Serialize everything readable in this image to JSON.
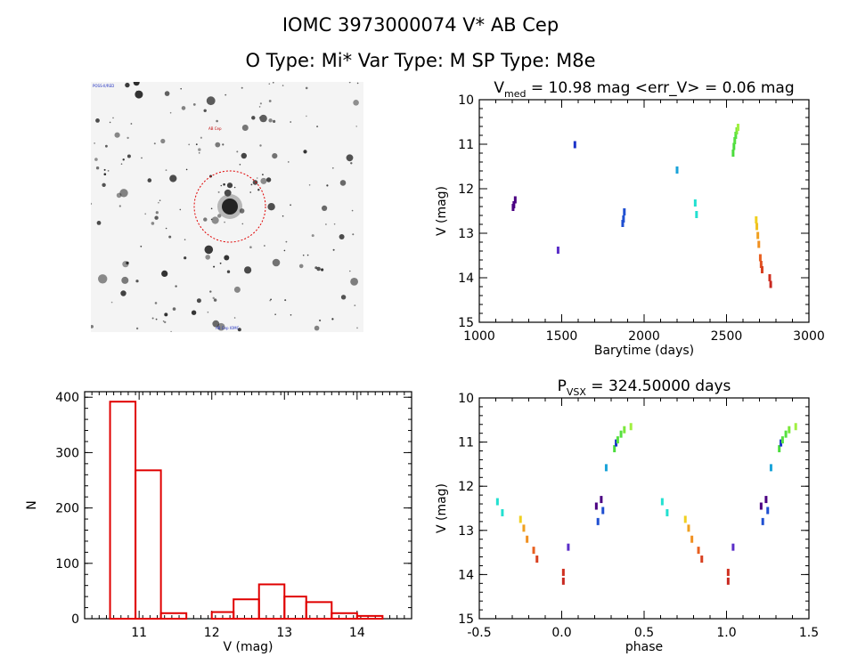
{
  "header": {
    "title": "IOMC 3973000074    V* AB Cep",
    "subtitle": "O Type: Mi*  Var Type: M   SP Type: M8e"
  },
  "image_panel": {
    "labels": [
      "POSS-II/RED",
      "AB Cep",
      "AB Cep  IOMC"
    ]
  },
  "chart_data": [
    {
      "type": "scatter",
      "title_parts": {
        "v": "V",
        "sub": "med",
        "rest": " = 10.98 mag <err_V> = 0.06 mag"
      },
      "xlabel": "Barytime (days)",
      "ylabel": "V (mag)",
      "xlim": [
        1000,
        3000
      ],
      "ylim": [
        15,
        10
      ],
      "y_inverted": true,
      "xticks": [
        1000,
        1500,
        2000,
        2500,
        3000
      ],
      "yticks": [
        10,
        11,
        12,
        13,
        14,
        15
      ],
      "points": [
        {
          "x": 1205,
          "y": 12.42,
          "color": "#4b0082"
        },
        {
          "x": 1210,
          "y": 12.36,
          "color": "#4b0082"
        },
        {
          "x": 1218,
          "y": 12.25,
          "color": "#4b0082"
        },
        {
          "x": 1478,
          "y": 13.38,
          "color": "#5a2ec8"
        },
        {
          "x": 1580,
          "y": 11.01,
          "color": "#1b33c9"
        },
        {
          "x": 1870,
          "y": 12.78,
          "color": "#1f4fd1"
        },
        {
          "x": 1875,
          "y": 12.68,
          "color": "#1f4fd1"
        },
        {
          "x": 1880,
          "y": 12.52,
          "color": "#1f4fd1"
        },
        {
          "x": 2200,
          "y": 11.58,
          "color": "#1aa3d9"
        },
        {
          "x": 2310,
          "y": 12.32,
          "color": "#22e0d0"
        },
        {
          "x": 2318,
          "y": 12.58,
          "color": "#22e0d0"
        },
        {
          "x": 2540,
          "y": 11.2,
          "color": "#4bdc3c"
        },
        {
          "x": 2545,
          "y": 11.05,
          "color": "#4bdc3c"
        },
        {
          "x": 2550,
          "y": 10.92,
          "color": "#55e040"
        },
        {
          "x": 2556,
          "y": 10.8,
          "color": "#55e040"
        },
        {
          "x": 2562,
          "y": 10.7,
          "color": "#7ae83a"
        },
        {
          "x": 2570,
          "y": 10.62,
          "color": "#a0f040"
        },
        {
          "x": 2680,
          "y": 12.7,
          "color": "#f0d020"
        },
        {
          "x": 2684,
          "y": 12.85,
          "color": "#f0c020"
        },
        {
          "x": 2690,
          "y": 13.05,
          "color": "#f0a020"
        },
        {
          "x": 2696,
          "y": 13.25,
          "color": "#f09020"
        },
        {
          "x": 2705,
          "y": 13.55,
          "color": "#e86020"
        },
        {
          "x": 2710,
          "y": 13.7,
          "color": "#e05020"
        },
        {
          "x": 2716,
          "y": 13.82,
          "color": "#d84020"
        },
        {
          "x": 2762,
          "y": 14.0,
          "color": "#d03020"
        },
        {
          "x": 2768,
          "y": 14.15,
          "color": "#c82820"
        }
      ]
    },
    {
      "type": "bar",
      "xlabel": "V (mag)",
      "ylabel": "N",
      "xlim": [
        10.25,
        14.75
      ],
      "ylim": [
        0,
        410
      ],
      "xticks": [
        11,
        12,
        13,
        14
      ],
      "yticks": [
        0,
        100,
        200,
        300,
        400
      ],
      "bin_edges": [
        10.6,
        10.95,
        11.3,
        11.65,
        12.0,
        12.3,
        12.65,
        13.0,
        13.3,
        13.65,
        14.0,
        14.35
      ],
      "values": [
        392,
        268,
        10,
        0,
        12,
        35,
        62,
        40,
        30,
        10,
        5
      ],
      "bar_color": "#e00000"
    },
    {
      "type": "scatter",
      "title_parts": {
        "v": "P",
        "sub": "VSX",
        "rest": " = 324.50000 days"
      },
      "xlabel": "phase",
      "ylabel": "V (mag)",
      "xlim": [
        -0.5,
        1.5
      ],
      "ylim": [
        15,
        10
      ],
      "y_inverted": true,
      "xticks": [
        -0.5,
        0.0,
        0.5,
        1.0,
        1.5
      ],
      "xtick_labels": [
        "-0.5",
        "0.0",
        "0.5",
        "1.0",
        "1.5"
      ],
      "yticks": [
        10,
        11,
        12,
        13,
        14,
        15
      ],
      "phase_points": [
        {
          "x": -0.39,
          "y": 12.35,
          "color": "#22e0d0"
        },
        {
          "x": -0.36,
          "y": 12.6,
          "color": "#22e0d0"
        },
        {
          "x": -0.25,
          "y": 12.75,
          "color": "#f0d020"
        },
        {
          "x": -0.23,
          "y": 12.95,
          "color": "#f0a020"
        },
        {
          "x": -0.21,
          "y": 13.2,
          "color": "#f09020"
        },
        {
          "x": -0.17,
          "y": 13.45,
          "color": "#e86020"
        },
        {
          "x": -0.15,
          "y": 13.65,
          "color": "#d84020"
        },
        {
          "x": 0.01,
          "y": 13.95,
          "color": "#d03020"
        },
        {
          "x": 0.01,
          "y": 14.15,
          "color": "#c82820"
        },
        {
          "x": 0.04,
          "y": 13.38,
          "color": "#5a2ec8"
        },
        {
          "x": 0.21,
          "y": 12.45,
          "color": "#4b0082"
        },
        {
          "x": 0.22,
          "y": 12.8,
          "color": "#1f4fd1"
        },
        {
          "x": 0.24,
          "y": 12.3,
          "color": "#4b0082"
        },
        {
          "x": 0.25,
          "y": 12.55,
          "color": "#1f4fd1"
        },
        {
          "x": 0.27,
          "y": 11.58,
          "color": "#1aa3d9"
        },
        {
          "x": 0.32,
          "y": 11.15,
          "color": "#4bdc3c"
        },
        {
          "x": 0.33,
          "y": 11.02,
          "color": "#1b33c9"
        },
        {
          "x": 0.34,
          "y": 10.95,
          "color": "#55e040"
        },
        {
          "x": 0.36,
          "y": 10.82,
          "color": "#55e040"
        },
        {
          "x": 0.38,
          "y": 10.72,
          "color": "#7ae83a"
        },
        {
          "x": 0.42,
          "y": 10.65,
          "color": "#a0f040"
        }
      ]
    }
  ]
}
